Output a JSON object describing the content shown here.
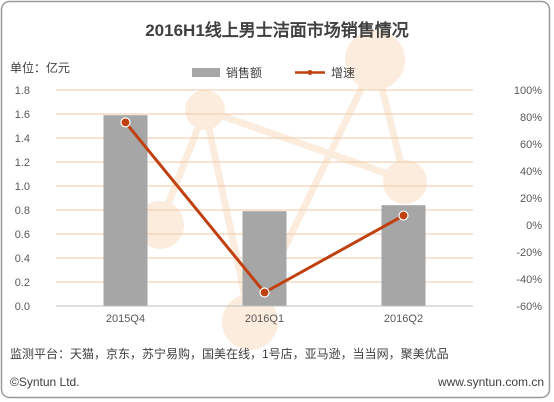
{
  "chart_data": {
    "type": "bar+line",
    "title": "2016H1线上男士洁面市场销售情况",
    "unit_label": "单位：亿元",
    "categories": [
      "2015Q4",
      "2016Q1",
      "2016Q2"
    ],
    "series": [
      {
        "name": "销售额",
        "type": "bar",
        "axis": "left",
        "values": [
          1.59,
          0.79,
          0.84
        ],
        "color": "#a6a6a6"
      },
      {
        "name": "增速",
        "type": "line",
        "axis": "right",
        "values": [
          76,
          -50,
          7
        ],
        "color": "#c0410f"
      }
    ],
    "left_axis": {
      "min": 0,
      "max": 1.8,
      "step": 0.2,
      "ticks": [
        "0.0",
        "0.2",
        "0.4",
        "0.6",
        "0.8",
        "1.0",
        "1.2",
        "1.4",
        "1.6",
        "1.8"
      ]
    },
    "right_axis": {
      "min": -60,
      "max": 100,
      "step": 20,
      "ticks": [
        "-60%",
        "-40%",
        "-20%",
        "0%",
        "20%",
        "40%",
        "60%",
        "80%",
        "100%"
      ]
    },
    "legend_position": "top",
    "grid": true,
    "grid_color": "#f2c7a6",
    "source_note": "监测平台：天猫，京东，苏宁易购，国美在线，1号店，亚马逊，当当网，聚美优品",
    "footer_left": "©Syntun Ltd.",
    "footer_right": "www.syntun.com.cn"
  }
}
